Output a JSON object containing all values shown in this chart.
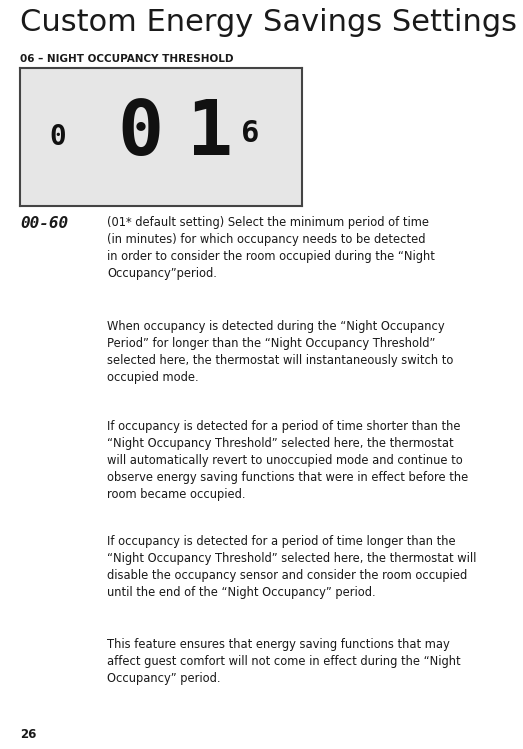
{
  "title": "Custom Energy Savings Settings",
  "subtitle": "06 – NIGHT OCCUPANCY THRESHOLD",
  "display_range": "00-60",
  "bg_color": "#ffffff",
  "display_bg": "#e6e6e6",
  "display_border": "#444444",
  "digit_color": "#111111",
  "page_number": "26",
  "para1": "(01* default setting) Select the minimum period of time\n(in minutes) for which occupancy needs to be detected\nin order to consider the room occupied during the “Night\nOccupancy”period.",
  "para2": "When occupancy is detected during the “Night Occupancy\nPeriod” for longer than the “Night Occupancy Threshold”\nselected here, the thermostat will instantaneously switch to\noccupied mode.",
  "para3": "If occupancy is detected for a period of time shorter than the\n“Night Occupancy Threshold” selected here, the thermostat\nwill automatically revert to unoccupied mode and continue to\nobserve energy saving functions that were in effect before the\nroom became occupied.",
  "para4": "If occupancy is detected for a period of time longer than the\n“Night Occupancy Threshold” selected here, the thermostat will\ndisable the occupancy sensor and consider the room occupied\nuntil the end of the “Night Occupancy” period.",
  "para5": "This feature ensures that energy saving functions that may\naffect guest comfort will not come in effect during the “Night\nOccupancy” period.",
  "title_fontsize": 22,
  "subtitle_fontsize": 7.5,
  "body_fontsize": 8.3,
  "range_fontsize": 11.5,
  "page_fontsize": 8.5,
  "fig_width": 5.23,
  "fig_height": 7.49,
  "dpi": 100
}
